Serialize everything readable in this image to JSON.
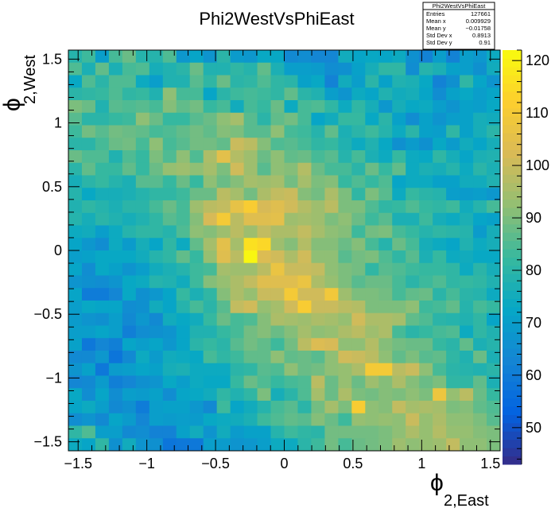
{
  "chart_data": {
    "type": "heatmap",
    "title": "Phi2WestVsPhiEast",
    "xlabel": {
      "symbol": "ϕ",
      "subscript": "2,East"
    },
    "ylabel": {
      "symbol": "ϕ",
      "subscript": "2,West"
    },
    "xlim": [
      -1.5708,
      1.5708
    ],
    "ylim": [
      -1.5708,
      1.5708
    ],
    "xbins": 32,
    "ybins": 32,
    "x_ticks": [
      "−1.5",
      "−1",
      "−0.5",
      "0",
      "0.5",
      "1",
      "1.5"
    ],
    "y_ticks": [
      "−1.5",
      "−1",
      "−0.5",
      "0",
      "0.5",
      "1",
      "1.5"
    ],
    "x_tick_values": [
      -1.5,
      -1,
      -0.5,
      0,
      0.5,
      1,
      1.5
    ],
    "y_tick_values": [
      -1.5,
      -1,
      -0.5,
      0,
      0.5,
      1,
      1.5
    ],
    "z_range": [
      43,
      122
    ],
    "z_ticks": [
      "50",
      "60",
      "70",
      "80",
      "90",
      "100",
      "110",
      "120"
    ],
    "z_tick_values": [
      50,
      60,
      70,
      80,
      90,
      100,
      110,
      120
    ],
    "palette": [
      "#352a87",
      "#0363e1",
      "#1485d4",
      "#06a7c6",
      "#38b99e",
      "#92bf73",
      "#d9ba56",
      "#fcce2e",
      "#f9fb0e"
    ],
    "stats": {
      "title": "Phi2WestVsPhiEast",
      "rows": [
        {
          "label": "Entries",
          "value": "127661"
        },
        {
          "label": "Mean x",
          "value": "0.009929"
        },
        {
          "label": "Mean y",
          "value": "−0.01758"
        },
        {
          "label": "Std Dev x",
          "value": "0.8913"
        },
        {
          "label": "Std Dev y",
          "value": "0.91"
        }
      ]
    },
    "values": [
      [
        79,
        83,
        70,
        84,
        88,
        79,
        79,
        85,
        68,
        72,
        67,
        80,
        69,
        68,
        73,
        73,
        64,
        65,
        63,
        63,
        75,
        72,
        73,
        72,
        74,
        66,
        62,
        70,
        62,
        70,
        68,
        74
      ],
      [
        85,
        77,
        87,
        77,
        84,
        85,
        76,
        78,
        80,
        88,
        78,
        78,
        81,
        79,
        87,
        77,
        70,
        70,
        69,
        65,
        66,
        71,
        76,
        81,
        81,
        65,
        79,
        77,
        71,
        70,
        66,
        75
      ],
      [
        73,
        85,
        80,
        85,
        85,
        74,
        70,
        78,
        78,
        86,
        81,
        88,
        80,
        81,
        85,
        81,
        80,
        71,
        73,
        62,
        75,
        70,
        80,
        71,
        78,
        77,
        73,
        62,
        66,
        81,
        72,
        67
      ],
      [
        80,
        81,
        82,
        85,
        81,
        82,
        78,
        92,
        84,
        84,
        72,
        80,
        83,
        84,
        83,
        81,
        87,
        80,
        78,
        70,
        67,
        74,
        72,
        78,
        75,
        76,
        72,
        65,
        71,
        73,
        70,
        72
      ],
      [
        90,
        88,
        78,
        86,
        85,
        86,
        84,
        91,
        87,
        89,
        82,
        84,
        75,
        84,
        82,
        88,
        74,
        84,
        85,
        81,
        74,
        81,
        76,
        68,
        76,
        73,
        74,
        70,
        67,
        71,
        70,
        73
      ],
      [
        86,
        80,
        80,
        82,
        83,
        92,
        88,
        82,
        82,
        86,
        88,
        92,
        95,
        86,
        80,
        87,
        89,
        84,
        72,
        75,
        82,
        82,
        73,
        80,
        71,
        65,
        71,
        67,
        70,
        71,
        76,
        75
      ],
      [
        83,
        89,
        86,
        89,
        88,
        87,
        84,
        85,
        87,
        89,
        87,
        91,
        90,
        86,
        86,
        92,
        84,
        83,
        79,
        87,
        77,
        80,
        83,
        79,
        74,
        80,
        71,
        70,
        81,
        71,
        76,
        80
      ],
      [
        80,
        80,
        84,
        88,
        89,
        84,
        92,
        84,
        86,
        89,
        89,
        87,
        100,
        98,
        91,
        85,
        86,
        84,
        81,
        82,
        78,
        74,
        78,
        73,
        66,
        69,
        66,
        73,
        69,
        75,
        72,
        76
      ],
      [
        88,
        85,
        85,
        78,
        85,
        82,
        90,
        85,
        92,
        85,
        96,
        105,
        97,
        94,
        88,
        92,
        87,
        88,
        84,
        86,
        79,
        84,
        77,
        74,
        82,
        74,
        73,
        81,
        76,
        72,
        77,
        78
      ],
      [
        80,
        87,
        82,
        82,
        87,
        82,
        88,
        93,
        94,
        92,
        95,
        90,
        101,
        94,
        86,
        92,
        91,
        97,
        88,
        84,
        84,
        80,
        88,
        82,
        87,
        74,
        77,
        76,
        79,
        74,
        80,
        77
      ],
      [
        76,
        80,
        82,
        79,
        77,
        86,
        86,
        82,
        88,
        82,
        92,
        88,
        91,
        95,
        94,
        95,
        89,
        95,
        90,
        91,
        82,
        85,
        82,
        85,
        72,
        74,
        74,
        71,
        71,
        75,
        75,
        78
      ],
      [
        79,
        73,
        76,
        76,
        77,
        79,
        81,
        81,
        83,
        88,
        88,
        98,
        95,
        89,
        96,
        99,
        100,
        91,
        89,
        96,
        90,
        81,
        90,
        86,
        74,
        82,
        80,
        79,
        70,
        69,
        70,
        68
      ],
      [
        78,
        81,
        79,
        77,
        80,
        80,
        84,
        88,
        84,
        94,
        98,
        99,
        106,
        111,
        102,
        104,
        101,
        97,
        94,
        98,
        90,
        90,
        85,
        81,
        82,
        85,
        82,
        81,
        83,
        75,
        79,
        84
      ],
      [
        79,
        76,
        80,
        78,
        76,
        78,
        81,
        86,
        84,
        91,
        102,
        110,
        98,
        104,
        104,
        105,
        94,
        95,
        94,
        90,
        92,
        88,
        83,
        86,
        77,
        77,
        83,
        76,
        74,
        77,
        72,
        71
      ],
      [
        74,
        75,
        70,
        74,
        79,
        81,
        81,
        79,
        85,
        92,
        91,
        94,
        98,
        94,
        99,
        96,
        96,
        99,
        95,
        92,
        91,
        83,
        89,
        90,
        84,
        82,
        79,
        81,
        80,
        79,
        69,
        76
      ],
      [
        72,
        68,
        65,
        74,
        69,
        76,
        72,
        81,
        74,
        87,
        95,
        105,
        95,
        116,
        114,
        94,
        91,
        97,
        91,
        91,
        88,
        91,
        84,
        79,
        88,
        84,
        76,
        74,
        72,
        78,
        74,
        76
      ],
      [
        70,
        71,
        73,
        73,
        73,
        75,
        79,
        81,
        87,
        82,
        93,
        104,
        98,
        121,
        103,
        101,
        96,
        101,
        92,
        92,
        86,
        89,
        90,
        85,
        81,
        86,
        77,
        82,
        74,
        75,
        73,
        73
      ],
      [
        72,
        65,
        73,
        71,
        67,
        70,
        75,
        77,
        79,
        83,
        84,
        95,
        94,
        94,
        98,
        107,
        100,
        100,
        99,
        92,
        90,
        89,
        81,
        86,
        85,
        83,
        82,
        82,
        81,
        74,
        80,
        76
      ],
      [
        67,
        66,
        65,
        67,
        73,
        74,
        79,
        78,
        75,
        83,
        91,
        93,
        96,
        99,
        104,
        104,
        104,
        107,
        96,
        93,
        90,
        86,
        88,
        88,
        84,
        80,
        83,
        85,
        81,
        82,
        81,
        78
      ],
      [
        72,
        60,
        60,
        63,
        73,
        66,
        68,
        72,
        82,
        77,
        81,
        91,
        96,
        93,
        100,
        100,
        110,
        101,
        101,
        109,
        94,
        90,
        90,
        89,
        84,
        87,
        88,
        80,
        84,
        80,
        79,
        74
      ],
      [
        70,
        73,
        72,
        72,
        65,
        66,
        75,
        72,
        79,
        84,
        80,
        86,
        99,
        101,
        93,
        95,
        101,
        111,
        100,
        100,
        98,
        97,
        90,
        90,
        90,
        92,
        83,
        84,
        87,
        79,
        84,
        82
      ],
      [
        69,
        67,
        66,
        70,
        64,
        68,
        64,
        75,
        73,
        75,
        82,
        88,
        84,
        85,
        91,
        96,
        95,
        94,
        96,
        95,
        93,
        101,
        96,
        96,
        95,
        87,
        85,
        80,
        79,
        78,
        81,
        72
      ],
      [
        70,
        70,
        72,
        70,
        61,
        65,
        66,
        67,
        72,
        78,
        78,
        82,
        84,
        89,
        91,
        88,
        91,
        95,
        92,
        93,
        96,
        98,
        94,
        96,
        84,
        80,
        82,
        84,
        85,
        74,
        81,
        78
      ],
      [
        71,
        59,
        63,
        61,
        72,
        70,
        72,
        68,
        72,
        80,
        82,
        80,
        86,
        89,
        87,
        83,
        89,
        98,
        103,
        102,
        92,
        92,
        97,
        91,
        89,
        88,
        88,
        82,
        80,
        87,
        77,
        79
      ],
      [
        64,
        64,
        68,
        58,
        64,
        74,
        69,
        75,
        74,
        73,
        84,
        81,
        83,
        87,
        87,
        92,
        87,
        88,
        86,
        92,
        101,
        100,
        98,
        92,
        87,
        90,
        86,
        87,
        81,
        78,
        88,
        77
      ],
      [
        67,
        71,
        59,
        69,
        70,
        72,
        71,
        76,
        77,
        74,
        74,
        74,
        80,
        81,
        86,
        85,
        92,
        88,
        89,
        92,
        93,
        96,
        110,
        110,
        98,
        100,
        92,
        84,
        80,
        79,
        78,
        80
      ],
      [
        63,
        64,
        69,
        61,
        63,
        66,
        67,
        73,
        70,
        74,
        73,
        73,
        82,
        88,
        85,
        82,
        84,
        85,
        98,
        88,
        93,
        88,
        94,
        91,
        96,
        91,
        88,
        90,
        81,
        81,
        87,
        77
      ],
      [
        73,
        65,
        72,
        65,
        70,
        69,
        71,
        65,
        72,
        73,
        75,
        81,
        78,
        81,
        90,
        76,
        80,
        85,
        95,
        88,
        96,
        90,
        89,
        91,
        90,
        92,
        90,
        108,
        93,
        98,
        88,
        82
      ],
      [
        72,
        74,
        70,
        64,
        66,
        60,
        70,
        71,
        71,
        68,
        64,
        83,
        72,
        75,
        79,
        84,
        86,
        80,
        89,
        95,
        90,
        111,
        92,
        91,
        99,
        95,
        96,
        95,
        90,
        91,
        87,
        85
      ],
      [
        65,
        67,
        64,
        72,
        69,
        63,
        70,
        69,
        70,
        69,
        73,
        74,
        75,
        77,
        83,
        85,
        87,
        86,
        91,
        88,
        83,
        93,
        92,
        93,
        92,
        100,
        93,
        96,
        92,
        92,
        90,
        86
      ],
      [
        81,
        85,
        70,
        70,
        64,
        65,
        62,
        62,
        71,
        75,
        67,
        75,
        69,
        71,
        71,
        79,
        83,
        81,
        80,
        89,
        89,
        89,
        89,
        90,
        92,
        96,
        93,
        97,
        93,
        93,
        91,
        90
      ],
      [
        74,
        72,
        81,
        66,
        75,
        67,
        66,
        58,
        59,
        59,
        70,
        69,
        67,
        68,
        70,
        74,
        74,
        80,
        83,
        89,
        84,
        88,
        89,
        90,
        94,
        92,
        93,
        94,
        99,
        92,
        92,
        90
      ]
    ]
  }
}
